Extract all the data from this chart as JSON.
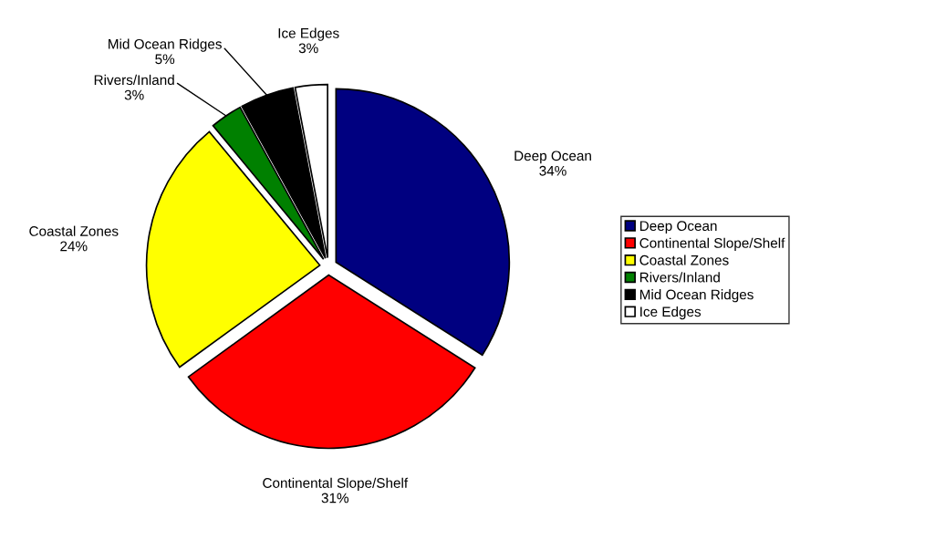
{
  "chart_data": {
    "type": "pie",
    "categories": [
      "Deep Ocean",
      "Continental Slope/Shelf",
      "Coastal Zones",
      "Rivers/Inland",
      "Mid Ocean Ridges",
      "Ice Edges"
    ],
    "values": [
      34,
      31,
      24,
      3,
      5,
      3
    ],
    "value_labels": [
      "34%",
      "31%",
      "24%",
      "3%",
      "5%",
      "3%"
    ],
    "colors": [
      "#000080",
      "#ff0000",
      "#ffff00",
      "#008000",
      "#000000",
      "#ffffff"
    ],
    "legend": "right"
  }
}
